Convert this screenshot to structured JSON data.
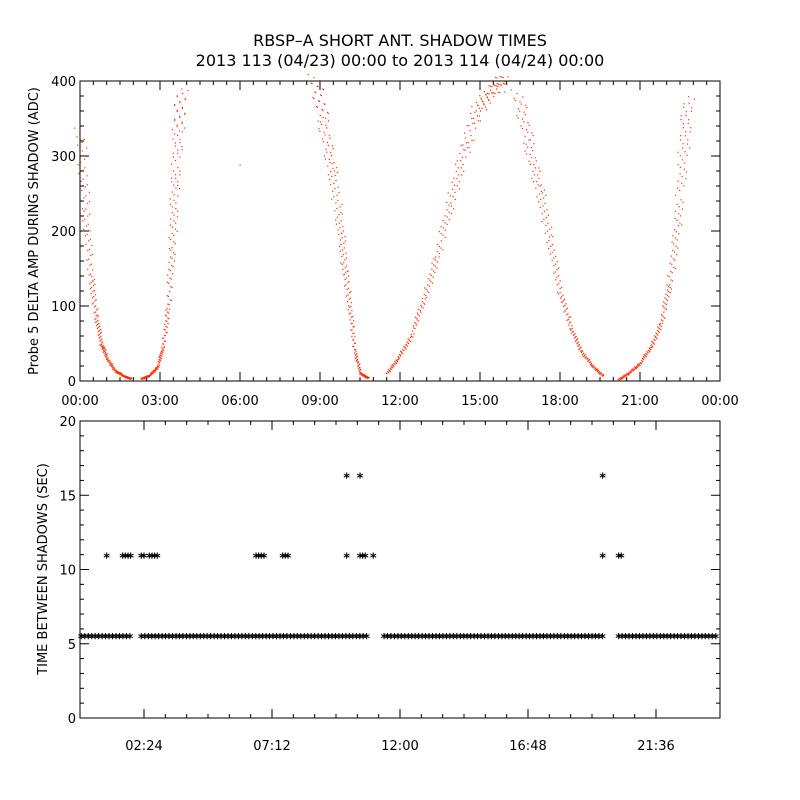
{
  "title_line1": "RBSP–A SHORT ANT. SHADOW TIMES",
  "title_line2": "2013 113 (04/23) 00:00 to 2013 114 (04/24) 00:00",
  "chart_data": [
    {
      "type": "scatter",
      "name": "delta-amp",
      "ylabel": "Probe 5 DELTA AMP DURING SHADOW (ADC)",
      "xlabel": "",
      "x_unit": "hours",
      "xlim": [
        0,
        24
      ],
      "ylim": [
        0,
        400
      ],
      "xticks": [
        0,
        3,
        6,
        9,
        12,
        15,
        18,
        21,
        24
      ],
      "xtick_labels": [
        "00:00",
        "03:00",
        "06:00",
        "09:00",
        "12:00",
        "15:00",
        "18:00",
        "21:00",
        "00:00"
      ],
      "yticks": [
        0,
        100,
        200,
        300,
        400
      ],
      "ytick_labels": [
        "0",
        "100",
        "200",
        "300",
        "400"
      ],
      "marker_color": "#ff2a00",
      "series": [
        {
          "name": "descending-1",
          "points": [
            [
              0.0,
              330
            ],
            [
              0.2,
              230
            ],
            [
              0.4,
              140
            ],
            [
              0.6,
              85
            ],
            [
              0.8,
              50
            ],
            [
              1.0,
              30
            ],
            [
              1.3,
              15
            ],
            [
              1.6,
              7
            ],
            [
              1.9,
              4
            ]
          ]
        },
        {
          "name": "ascending-1",
          "points": [
            [
              2.3,
              3
            ],
            [
              2.6,
              8
            ],
            [
              2.9,
              20
            ],
            [
              3.1,
              45
            ],
            [
              3.3,
              100
            ],
            [
              3.45,
              180
            ],
            [
              3.55,
              260
            ],
            [
              3.65,
              330
            ],
            [
              3.8,
              390
            ]
          ]
        },
        {
          "name": "isolated-1",
          "points": [
            [
              6.0,
              288
            ]
          ]
        },
        {
          "name": "descending-2",
          "points": [
            [
              8.8,
              400
            ],
            [
              9.1,
              350
            ],
            [
              9.4,
              290
            ],
            [
              9.7,
              220
            ],
            [
              9.9,
              160
            ],
            [
              10.1,
              100
            ],
            [
              10.3,
              40
            ],
            [
              10.5,
              10
            ],
            [
              10.8,
              5
            ]
          ]
        },
        {
          "name": "ascending-2",
          "points": [
            [
              11.5,
              10
            ],
            [
              11.9,
              30
            ],
            [
              12.4,
              60
            ],
            [
              12.9,
              110
            ],
            [
              13.4,
              170
            ],
            [
              13.9,
              240
            ],
            [
              14.4,
              310
            ],
            [
              14.9,
              360
            ],
            [
              15.4,
              390
            ],
            [
              15.9,
              400
            ]
          ]
        },
        {
          "name": "descending-3",
          "points": [
            [
              16.4,
              380
            ],
            [
              16.8,
              320
            ],
            [
              17.2,
              260
            ],
            [
              17.6,
              190
            ],
            [
              18.0,
              120
            ],
            [
              18.4,
              70
            ],
            [
              18.8,
              40
            ],
            [
              19.2,
              20
            ],
            [
              19.6,
              8
            ]
          ]
        },
        {
          "name": "ascending-3",
          "points": [
            [
              20.2,
              2
            ],
            [
              20.6,
              12
            ],
            [
              21.0,
              25
            ],
            [
              21.4,
              45
            ],
            [
              21.8,
              80
            ],
            [
              22.1,
              130
            ],
            [
              22.4,
              210
            ],
            [
              22.6,
              300
            ],
            [
              22.8,
              380
            ]
          ]
        }
      ]
    },
    {
      "type": "scatter",
      "name": "time-between-shadows",
      "ylabel": "TIME BETWEEN SHADOWS (SEC)",
      "xlabel": "",
      "x_unit": "hours",
      "xlim": [
        0,
        24
      ],
      "ylim": [
        0,
        20
      ],
      "xticks": [
        2.4,
        7.2,
        12.0,
        16.8,
        21.6
      ],
      "xtick_labels": [
        "02:24",
        "07:12",
        "12:00",
        "16:48",
        "21:36"
      ],
      "yticks": [
        0,
        5,
        10,
        15,
        20
      ],
      "ytick_labels": [
        "0",
        "5",
        "10",
        "15",
        "20"
      ],
      "marker": "*",
      "marker_color": "#000000",
      "baseline": {
        "y": 5.4,
        "segments": [
          [
            0.05,
            1.9
          ],
          [
            2.3,
            10.8
          ],
          [
            11.4,
            19.6
          ],
          [
            20.2,
            23.95
          ]
        ],
        "step": 0.13
      },
      "series": [
        {
          "name": "10.8s",
          "y": 10.8,
          "x": [
            1.0,
            1.6,
            1.7,
            1.8,
            1.9,
            2.3,
            2.4,
            2.6,
            2.7,
            2.8,
            2.9,
            6.6,
            6.7,
            6.8,
            6.9,
            7.6,
            7.7,
            7.8,
            10.0,
            10.5,
            10.6,
            10.7,
            11.0,
            19.6,
            20.2,
            20.3
          ]
        },
        {
          "name": "16.2s",
          "y": 16.2,
          "x": [
            10.0,
            10.5,
            19.6
          ]
        }
      ]
    }
  ]
}
